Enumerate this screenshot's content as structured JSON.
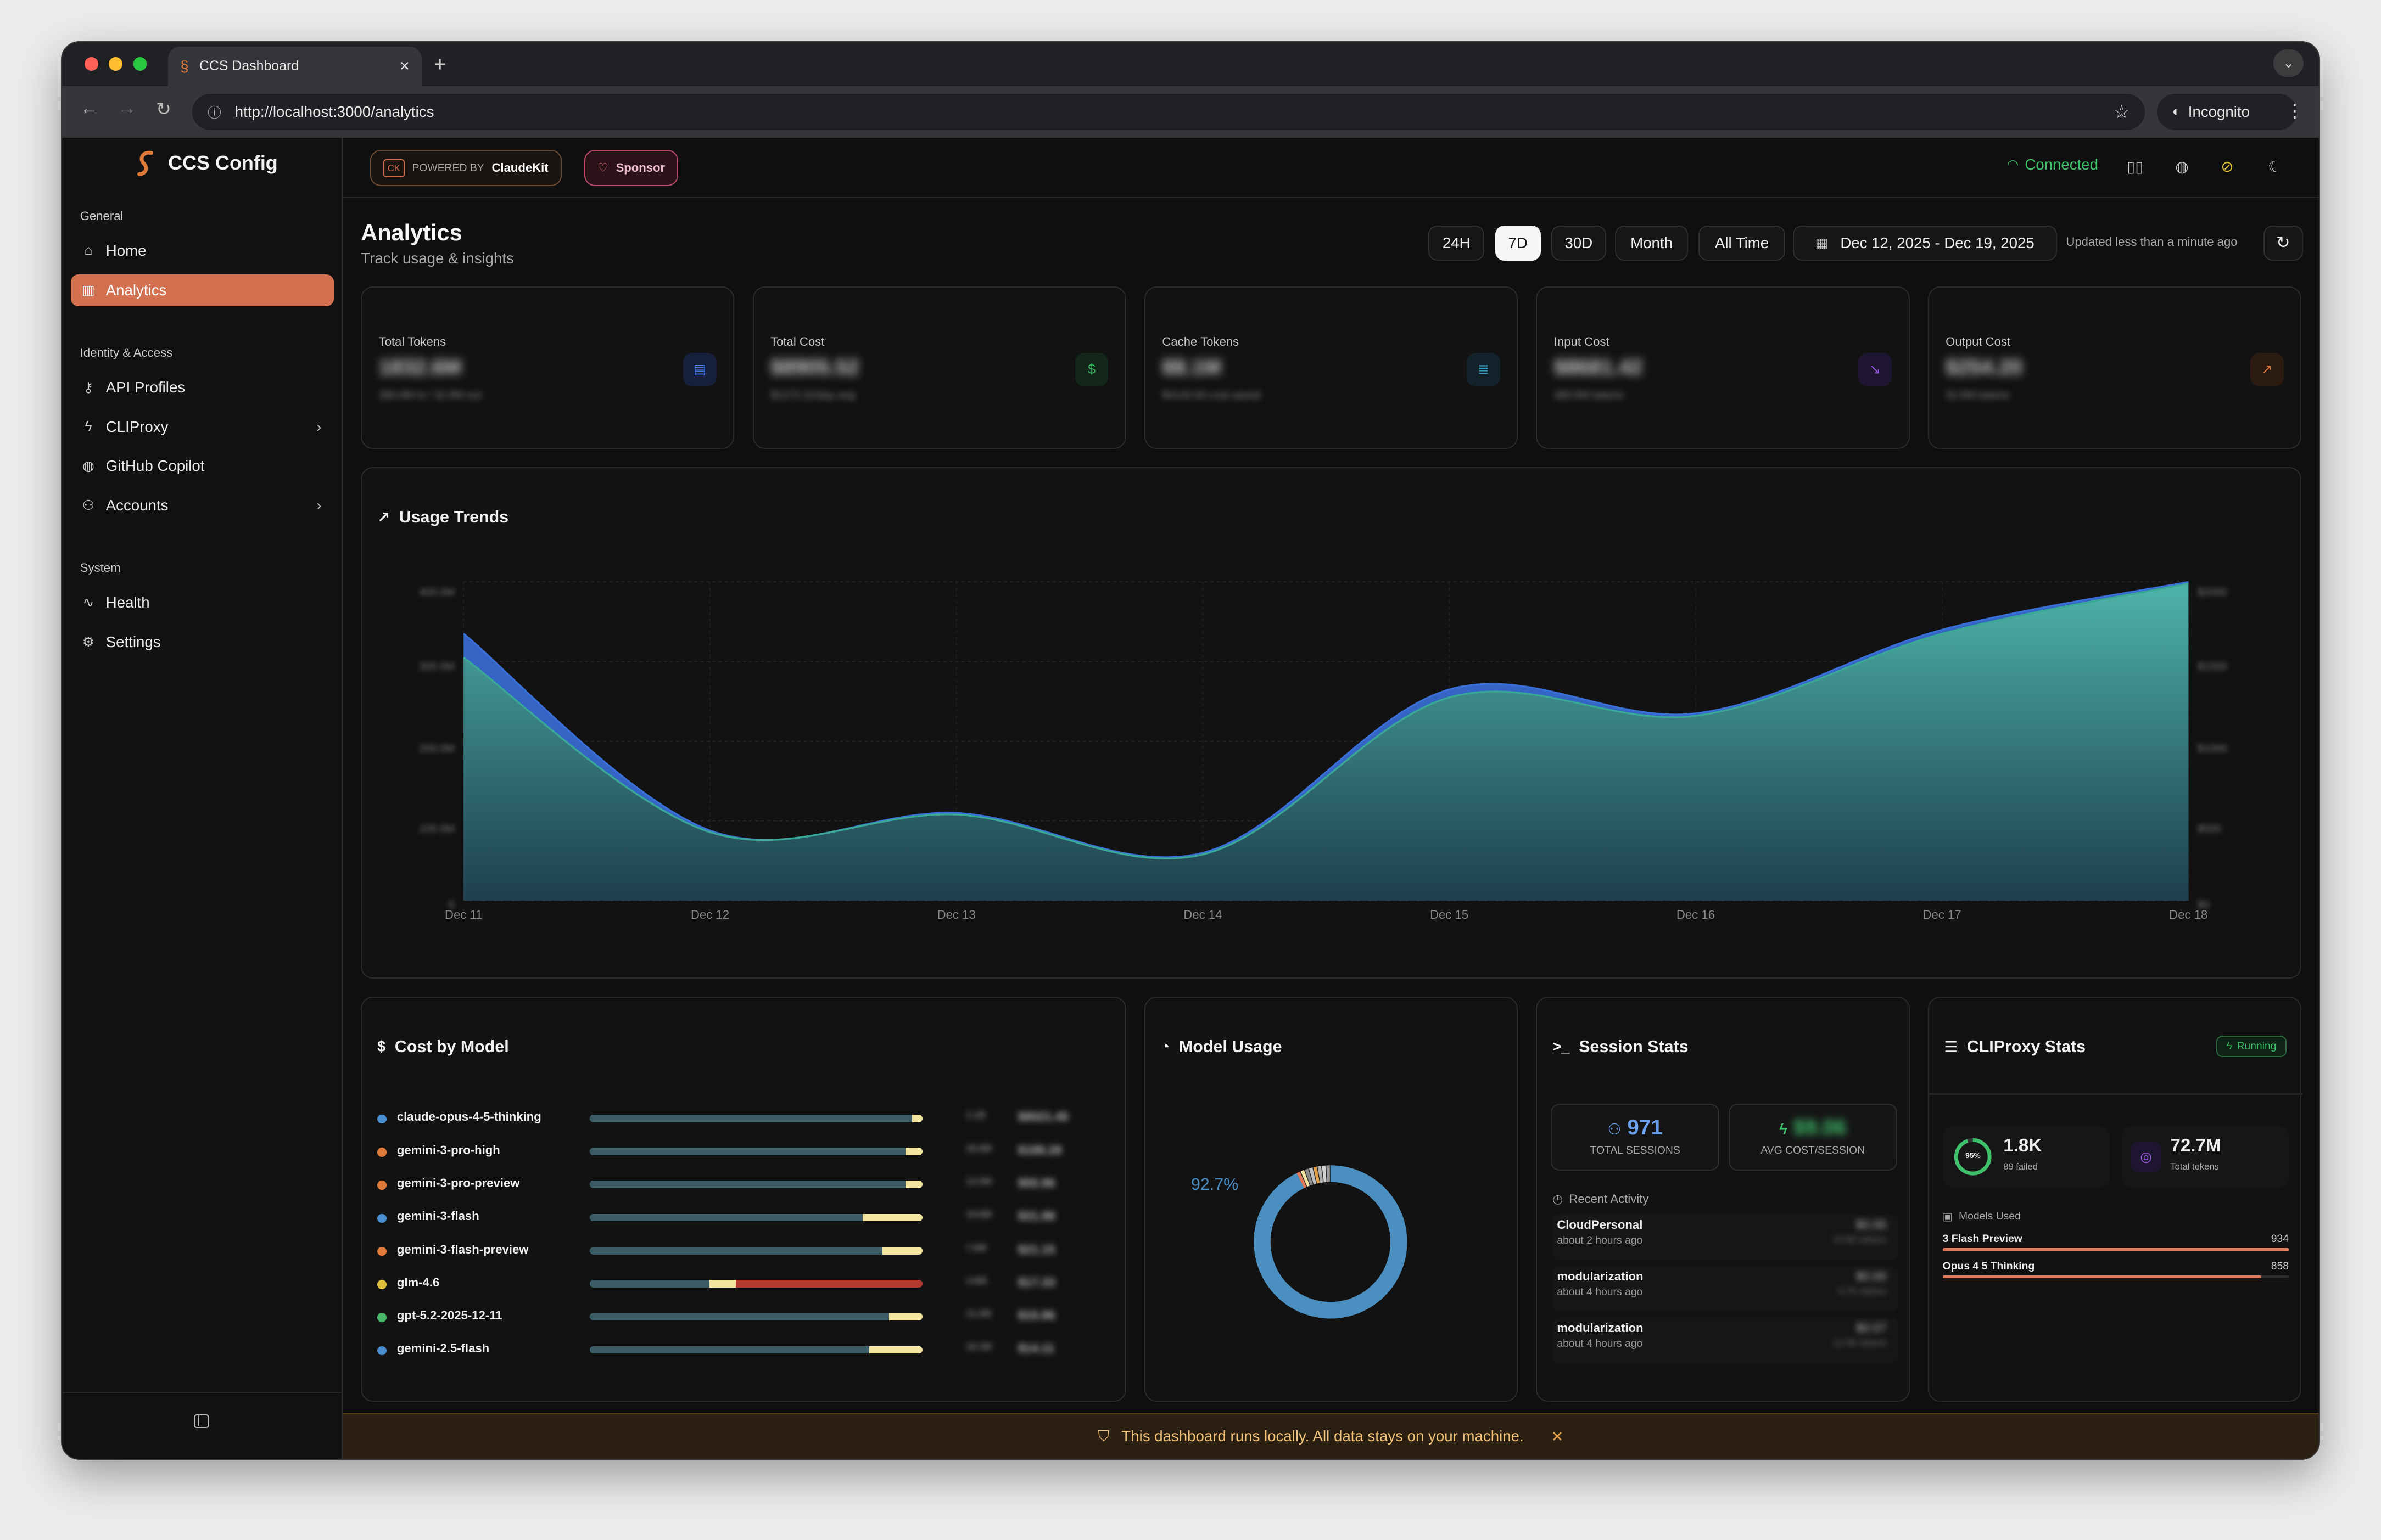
{
  "browser": {
    "tab_title": "CCS Dashboard",
    "url": "http://localhost:3000/analytics",
    "profile": "Incognito"
  },
  "sidebar": {
    "brand": "CCS Config",
    "sections": {
      "general": "General",
      "identity": "Identity & Access",
      "system": "System"
    },
    "items": [
      {
        "label": "Home",
        "icon": "home-icon"
      },
      {
        "label": "Analytics",
        "icon": "bar-chart-icon",
        "active": true
      },
      {
        "label": "API Profiles",
        "icon": "key-icon"
      },
      {
        "label": "CLIProxy",
        "icon": "zap-icon",
        "expandable": true
      },
      {
        "label": "GitHub Copilot",
        "icon": "github-icon"
      },
      {
        "label": "Accounts",
        "icon": "users-icon",
        "expandable": true
      },
      {
        "label": "Health",
        "icon": "activity-icon"
      },
      {
        "label": "Settings",
        "icon": "gear-icon"
      }
    ]
  },
  "topbar": {
    "powered_prefix": "POWERED BY",
    "powered_brand": "ClaudeKit",
    "sponsor": "Sponsor",
    "status": "Connected"
  },
  "header": {
    "title": "Analytics",
    "subtitle": "Track usage & insights",
    "ranges": [
      "24H",
      "7D",
      "30D",
      "Month",
      "All Time"
    ],
    "selected_range": "7D",
    "date_range": "Dec 12, 2025 - Dec 19, 2025",
    "updated": "Updated less than a minute ago"
  },
  "stats": [
    {
      "label": "Total Tokens",
      "value": "1832.6M",
      "sub": "380.6M in / 32.6M out",
      "icon": "file-icon",
      "color": "#3b6fd8"
    },
    {
      "label": "Total Cost",
      "value": "$8905.52",
      "sub": "$1272.22/day avg",
      "icon": "dollar-icon",
      "color": "#2fae5e"
    },
    {
      "label": "Cache Tokens",
      "value": "88.1M",
      "sub": "$4143.93 cost saved",
      "icon": "database-icon",
      "color": "#3a9bc0"
    },
    {
      "label": "Input Cost",
      "value": "$8681.42",
      "sub": "380.6M tokens",
      "icon": "arrow-down-right-icon",
      "color": "#8a4cd6"
    },
    {
      "label": "Output Cost",
      "value": "$254.20",
      "sub": "32.6M tokens",
      "icon": "arrow-up-right-icon",
      "color": "#d66a2a"
    }
  ],
  "usage_trends": {
    "title": "Usage Trends",
    "y_ticks_left": [
      "400.0M",
      "300.0M",
      "200.0M",
      "100.0M",
      "0"
    ],
    "y_ticks_right": [
      "$2000",
      "$1500",
      "$1000",
      "$500",
      "$0"
    ]
  },
  "chart_data": {
    "type": "area",
    "x": [
      "Dec 11",
      "Dec 12",
      "Dec 13",
      "Dec 14",
      "Dec 15",
      "Dec 16",
      "Dec 17",
      "Dec 18"
    ],
    "ylim": [
      0,
      400
    ],
    "series": [
      {
        "values": [
          335,
          88,
          110,
          60,
          265,
          235,
          340,
          400
        ],
        "color": "#3a6fd8"
      },
      {
        "values": [
          305,
          86,
          108,
          58,
          255,
          232,
          335,
          398
        ],
        "color": "#3aa896"
      }
    ]
  },
  "cost_by_model": {
    "title": "Cost by Model",
    "rows": [
      {
        "name": "claude-opus-4-5-thinking",
        "tokens": "1.1B",
        "cost": "$8021.45",
        "dot": "#4a8fd0",
        "segs": [
          [
            0,
            0.97,
            "#3b5b64"
          ],
          [
            0.97,
            0.03,
            "#f3e4a0"
          ]
        ]
      },
      {
        "name": "gemini-3-pro-high",
        "tokens": "26.6M",
        "cost": "$188.28",
        "dot": "#e07a3a",
        "segs": [
          [
            0,
            0.95,
            "#3b5b64"
          ],
          [
            0.95,
            0.05,
            "#f3e4a0"
          ]
        ]
      },
      {
        "name": "gemini-3-pro-preview",
        "tokens": "12.0M",
        "cost": "$55.96",
        "dot": "#e07a3a",
        "segs": [
          [
            0,
            0.95,
            "#3b5b64"
          ],
          [
            0.95,
            0.05,
            "#f3e4a0"
          ]
        ]
      },
      {
        "name": "gemini-3-flash",
        "tokens": "19.6M",
        "cost": "$31.98",
        "dot": "#4a8fd0",
        "segs": [
          [
            0,
            0.82,
            "#3b5b64"
          ],
          [
            0.82,
            0.18,
            "#f3e4a0"
          ]
        ]
      },
      {
        "name": "gemini-3-flash-preview",
        "tokens": "7.6M",
        "cost": "$21.15",
        "dot": "#e07a3a",
        "segs": [
          [
            0,
            0.88,
            "#3b5b64"
          ],
          [
            0.88,
            0.12,
            "#f3e4a0"
          ]
        ]
      },
      {
        "name": "glm-4.6",
        "tokens": "4.6M",
        "cost": "$17.33",
        "dot": "#e0c03a",
        "segs": [
          [
            0,
            0.36,
            "#3b5b64"
          ],
          [
            0.36,
            0.08,
            "#f3e4a0"
          ],
          [
            0.44,
            0.56,
            "#b23a30"
          ]
        ]
      },
      {
        "name": "gpt-5.2-2025-12-11",
        "tokens": "11.2M",
        "cost": "$15.96",
        "dot": "#4ab86a",
        "segs": [
          [
            0,
            0.9,
            "#3b5b64"
          ],
          [
            0.9,
            0.1,
            "#f3e4a0"
          ]
        ]
      },
      {
        "name": "gemini-2.5-flash",
        "tokens": "16.1M",
        "cost": "$14.11",
        "dot": "#4a8fd0",
        "segs": [
          [
            0,
            0.84,
            "#3b5b64"
          ],
          [
            0.84,
            0.16,
            "#f3e4a0"
          ]
        ]
      }
    ]
  },
  "model_usage": {
    "title": "Model Usage",
    "percent_label": "92.7%",
    "percent": 0.927
  },
  "session_stats": {
    "title": "Session Stats",
    "total_sessions": "971",
    "total_label": "TOTAL SESSIONS",
    "avg_cost": "$9.06",
    "avg_label": "AVG COST/SESSION",
    "recent": "Recent Activity",
    "activity": [
      {
        "name": "CloudPersonal",
        "time": "about 2 hours ago",
        "cost": "$0.00",
        "tokens": "10.8K tokens"
      },
      {
        "name": "modularization",
        "time": "about 4 hours ago",
        "cost": "$0.00",
        "tokens": "9.7K tokens"
      },
      {
        "name": "modularization",
        "time": "about 4 hours ago",
        "cost": "$0.07",
        "tokens": "12.3K tokens"
      }
    ]
  },
  "cliproxy": {
    "title": "CLIProxy Stats",
    "status": "Running",
    "success_pct": "95%",
    "success_frac": 0.95,
    "requests": "1.8K",
    "failed": "89 failed",
    "tokens": "72.7M",
    "tokens_label": "Total tokens",
    "models_label": "Models Used",
    "models": [
      {
        "name": "3 Flash Preview",
        "count": "934",
        "frac": 1.0
      },
      {
        "name": "Opus 4 5 Thinking",
        "count": "858",
        "frac": 0.92
      }
    ]
  },
  "banner": {
    "text": "This dashboard runs locally. All data stays on your machine."
  }
}
